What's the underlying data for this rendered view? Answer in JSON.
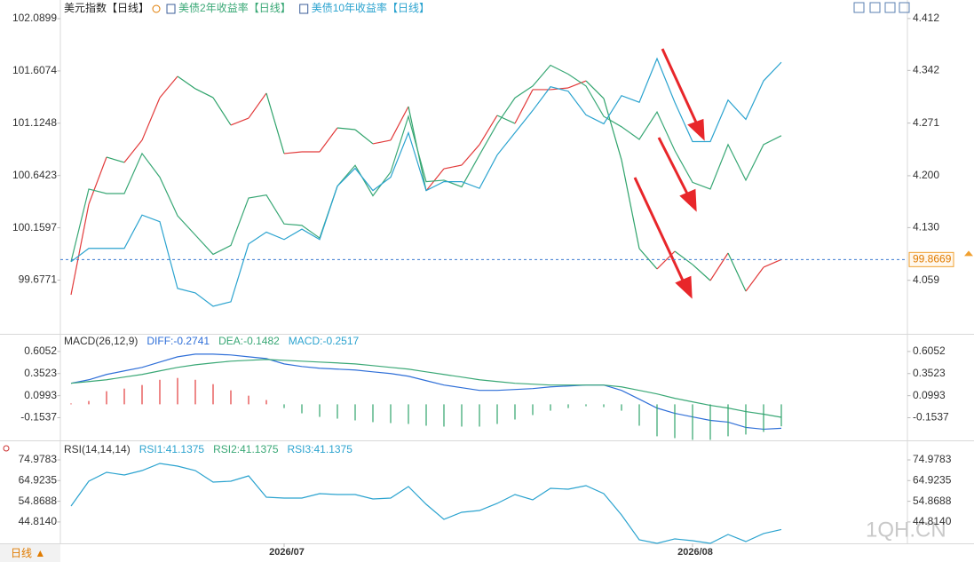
{
  "chart_data": [
    {
      "type": "line",
      "series": [
        {
          "name": "美元指数【日线】",
          "color": "#e23b3b",
          "down_color": "#2fa36b",
          "axis": "y",
          "values": [
            99.542,
            100.378,
            100.812,
            100.763,
            100.968,
            101.361,
            101.557,
            101.443,
            101.361,
            101.107,
            101.172,
            101.402,
            100.845,
            100.861,
            100.861,
            101.082,
            101.066,
            100.935,
            100.968,
            101.279,
            100.501,
            100.705,
            100.738,
            100.927,
            101.197,
            101.123,
            101.435,
            101.435,
            101.451,
            101.516,
            101.353,
            100.787,
            99.968,
            99.78,
            99.943,
            99.821,
            99.673,
            99.927,
            99.575,
            99.796,
            99.8669
          ]
        },
        {
          "name": "美债2年收益率【日线】",
          "color": "#3aa876",
          "axis": "y2",
          "values": [
            4.084,
            4.182,
            4.176,
            4.176,
            4.23,
            4.198,
            4.146,
            4.12,
            4.094,
            4.106,
            4.17,
            4.174,
            4.135,
            4.133,
            4.116,
            4.186,
            4.214,
            4.173,
            4.205,
            4.28,
            4.192,
            4.194,
            4.185,
            4.228,
            4.27,
            4.305,
            4.321,
            4.349,
            4.337,
            4.321,
            4.28,
            4.266,
            4.249,
            4.286,
            4.234,
            4.191,
            4.182,
            4.242,
            4.194,
            4.242,
            4.254
          ]
        },
        {
          "name": "美债10年收益率【日线】",
          "color": "#2ba3cf",
          "axis": "y2",
          "values": [
            4.084,
            4.102,
            4.102,
            4.102,
            4.147,
            4.138,
            4.048,
            4.042,
            4.024,
            4.03,
            4.108,
            4.124,
            4.114,
            4.128,
            4.114,
            4.186,
            4.21,
            4.18,
            4.198,
            4.258,
            4.18,
            4.192,
            4.192,
            4.183,
            4.228,
            4.258,
            4.288,
            4.32,
            4.314,
            4.282,
            4.27,
            4.308,
            4.299,
            4.358,
            4.299,
            4.246,
            4.246,
            4.302,
            4.276,
            4.328,
            4.353
          ]
        }
      ],
      "ylim": [
        99.1896,
        102.221
      ],
      "yticks": [
        102.0899,
        101.6074,
        101.1248,
        100.6423,
        100.1597,
        99.6771
      ],
      "y2lim": [
        3.988,
        4.431
      ],
      "y2ticks": [
        4.412,
        4.342,
        4.271,
        {
          "value": 4.2,
          "label": "4.200"
        },
        {
          "value": 4.13,
          "label": "4.130"
        },
        4.059
      ],
      "current_line": true
    },
    {
      "type": "macd",
      "title": "MACD(26,12,9)",
      "series": [
        {
          "name": "DIFF:-0.2741",
          "color": "#2f6fd8",
          "kind": "line",
          "values": [
            0.241,
            0.281,
            0.342,
            0.383,
            0.423,
            0.484,
            0.544,
            0.575,
            0.575,
            0.565,
            0.544,
            0.524,
            0.463,
            0.433,
            0.413,
            0.403,
            0.393,
            0.372,
            0.352,
            0.322,
            0.271,
            0.221,
            0.19,
            0.16,
            0.16,
            0.17,
            0.18,
            0.2,
            0.21,
            0.221,
            0.221,
            0.16,
            0.059,
            -0.043,
            -0.103,
            -0.144,
            -0.184,
            -0.204,
            -0.265,
            -0.285,
            -0.2741
          ]
        },
        {
          "name": "DEA:-0.1482",
          "color": "#3aa876",
          "kind": "line",
          "values": [
            0.241,
            0.261,
            0.281,
            0.312,
            0.342,
            0.383,
            0.423,
            0.453,
            0.474,
            0.494,
            0.504,
            0.514,
            0.504,
            0.494,
            0.484,
            0.474,
            0.463,
            0.443,
            0.423,
            0.403,
            0.372,
            0.342,
            0.312,
            0.281,
            0.261,
            0.241,
            0.231,
            0.221,
            0.221,
            0.221,
            0.221,
            0.2,
            0.16,
            0.119,
            0.069,
            0.028,
            -0.012,
            -0.043,
            -0.083,
            -0.113,
            -0.1482
          ]
        },
        {
          "name": "MACD:-0.2517",
          "color": "#2ba3cf",
          "kind": "bar",
          "up_color": "#e23b3b",
          "down_color": "#2fa36b",
          "values": [
            0.01,
            0.038,
            0.15,
            0.18,
            0.221,
            0.281,
            0.302,
            0.281,
            0.231,
            0.16,
            0.099,
            0.049,
            -0.043,
            -0.103,
            -0.144,
            -0.164,
            -0.184,
            -0.204,
            -0.215,
            -0.225,
            -0.245,
            -0.255,
            -0.255,
            -0.255,
            -0.225,
            -0.174,
            -0.123,
            -0.073,
            -0.043,
            -0.022,
            -0.032,
            -0.073,
            -0.245,
            -0.366,
            -0.387,
            -0.407,
            -0.407,
            -0.366,
            -0.346,
            -0.316,
            -0.2517
          ]
        }
      ],
      "ylim": [
        -0.423,
        0.787
      ],
      "yticks": [
        0.6052,
        0.3523,
        0.0993,
        -0.1537
      ]
    },
    {
      "type": "line",
      "title": "RSI(14,14,14)",
      "categories": [
        null,
        null,
        null,
        null,
        null,
        null,
        null,
        null,
        null,
        null,
        null,
        null,
        "2026/07",
        null,
        null,
        null,
        null,
        null,
        null,
        null,
        null,
        null,
        null,
        null,
        null,
        null,
        null,
        null,
        null,
        null,
        null,
        null,
        null,
        null,
        null,
        "2026/08",
        null,
        null,
        null,
        null,
        null
      ],
      "series": [
        {
          "name": "RSI1:41.1375",
          "color": "#2ba3cf",
          "axis": "y",
          "values": [
            52.54,
            64.62,
            68.94,
            67.64,
            69.8,
            73.25,
            71.96,
            69.8,
            64.19,
            64.62,
            67.21,
            56.86,
            56.43,
            56.43,
            58.58,
            58.15,
            58.15,
            55.99,
            56.43,
            62.03,
            53.4,
            46.07,
            49.52,
            50.38,
            53.84,
            58.15,
            55.56,
            61.17,
            60.74,
            62.47,
            58.58,
            48.23,
            36.14,
            34.42,
            36.58,
            35.71,
            34.42,
            38.73,
            35.28,
            39.17,
            41.1375
          ]
        }
      ],
      "legend_extra": [
        {
          "label": "RSI2:41.1375",
          "color": "#3aa876"
        },
        {
          "label": "RSI3:41.1375",
          "color": "#2ba3cf"
        }
      ],
      "ylim": [
        33.55,
        82.745
      ],
      "yticks": [
        74.9783,
        64.9235,
        54.8688,
        {
          "value": 44.814,
          "label": "44.8140"
        }
      ]
    }
  ],
  "period_button": "日线 ▲",
  "watermark": "1QH.CN"
}
